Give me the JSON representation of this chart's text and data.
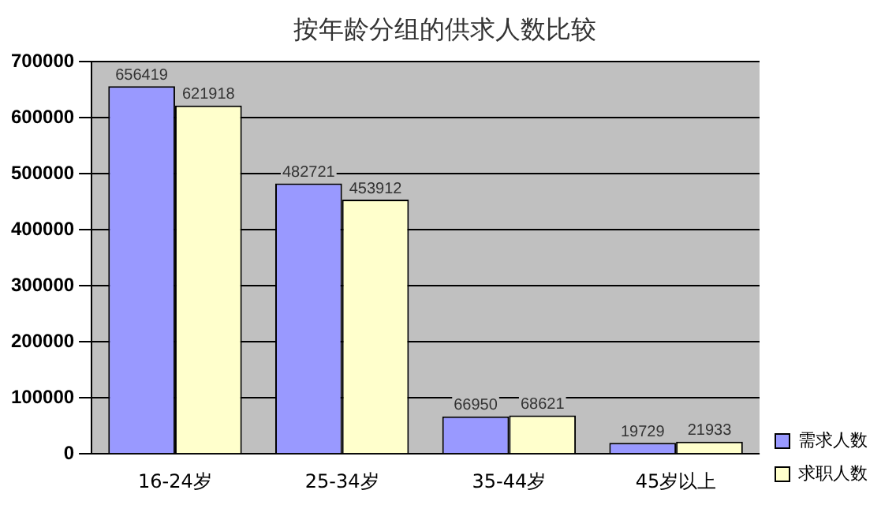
{
  "chart_data": {
    "type": "bar",
    "title": "按年龄分组的供求人数比较",
    "categories": [
      "16-24岁",
      "25-34岁",
      "35-44岁",
      "45岁以上"
    ],
    "series": [
      {
        "name": "需求人数",
        "color": "#9999ff",
        "values": [
          656419,
          482721,
          66950,
          19729
        ]
      },
      {
        "name": "求职人数",
        "color": "#ffffcc",
        "values": [
          621918,
          453912,
          68621,
          21933
        ]
      }
    ],
    "ylim": [
      0,
      700000
    ],
    "yticks": [
      0,
      100000,
      200000,
      300000,
      400000,
      500000,
      600000,
      700000
    ],
    "grid": "y",
    "legend": "bottom right",
    "data_labels": true
  }
}
